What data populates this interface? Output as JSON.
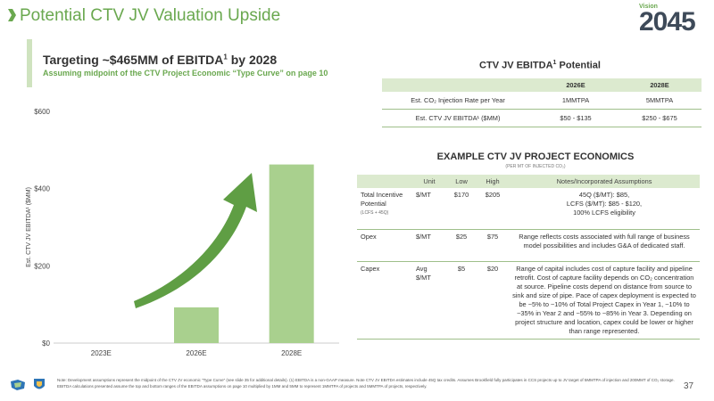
{
  "page": {
    "title": "Potential CTV JV Valuation Upside",
    "number": "37",
    "accent_color": "#6aa84f"
  },
  "logo": {
    "small_text": "Vision",
    "number": "2045"
  },
  "headline": {
    "main": "Targeting ~$465MM of EBITDA",
    "main_sup": "1",
    "main_end": " by 2028",
    "sub": "Assuming midpoint of the CTV Project Economic “Type Curve” on page 10"
  },
  "chart_data": {
    "type": "bar",
    "categories": [
      "2023E",
      "2026E",
      "2028E"
    ],
    "values": [
      0,
      92.5,
      462.5
    ],
    "ylabel": "Est. CTV JV EBITDA¹ ($MM)",
    "ylim": [
      0,
      600
    ],
    "yticks": [
      "$0",
      "$200",
      "$400",
      "$600"
    ],
    "bar_color": "#a9d08e",
    "arrow_color": "#5f9e44",
    "grid": false
  },
  "ebitda_potential": {
    "title": "CTV JV EBITDA",
    "title_sup": "1",
    "title_end": " Potential",
    "headers": [
      "",
      "2026E",
      "2028E"
    ],
    "rows": [
      {
        "label": "Est. CO₂ Injection Rate per Year",
        "v1": "1MMTPA",
        "v2": "5MMTPA"
      },
      {
        "label": "Est. CTV JV EBITDA¹ ($MM)",
        "v1": "$50 - $135",
        "v2": "$250 - $675"
      }
    ]
  },
  "economics": {
    "title": "EXAMPLE CTV JV PROJECT ECONOMICS",
    "subtitle": "(PER MT OF INJECTED CO₂)",
    "headers": [
      "",
      "Unit",
      "Low",
      "High",
      "Notes/Incorporated Assumptions"
    ],
    "rows": [
      {
        "label": "Total Incentive Potential",
        "label_sub": "(LCFS + 45Q)",
        "unit": "$/MT",
        "low": "$170",
        "high": "$205",
        "notes": "45Q ($/MT): $85,\nLCFS ($/MT): $85 - $120,\n100% LCFS eligibility"
      },
      {
        "label": "Opex",
        "label_sub": "",
        "unit": "$/MT",
        "low": "$25",
        "high": "$75",
        "notes": "Range reflects costs associated with full range of business model possibilities and includes G&A of dedicated staff."
      },
      {
        "label": "Capex",
        "label_sub": "",
        "unit": "Avg $/MT",
        "low": "$5",
        "high": "$20",
        "notes": "Range of capital includes cost of capture facility and pipeline retrofit. Cost of capture facility depends on CO₂ concentration at source. Pipeline costs depend on distance from source to sink and size of pipe. Pace of capex deployment is expected to be ~5% to ~10% of Total Project Capex in Year 1, ~10% to ~35% in Year 2 and ~55% to ~85% in Year 3. Depending on project structure and location, capex could be lower or higher than range represented."
      }
    ]
  },
  "footnote": "Note: Development assumptions represent the midpoint of the CTV JV economic “Type Curve” (see slide 35 for additional details). (1) EBITDA is a non-GAAP measure. Note CTV JV EBITDA estimates include 45Q tax credits. Assumes Brookfield fully participates in CCS projects up to JV target of 5MMTPA of injection and 200MMT of CO₂ storage. EBITDA calculations presented assume the top and bottom ranges of the EBITDA assumptions on page 10 multiplied by 1MM and 5MM to represent 1MMTPA of projects and 5MMTPA of projects, respectively."
}
